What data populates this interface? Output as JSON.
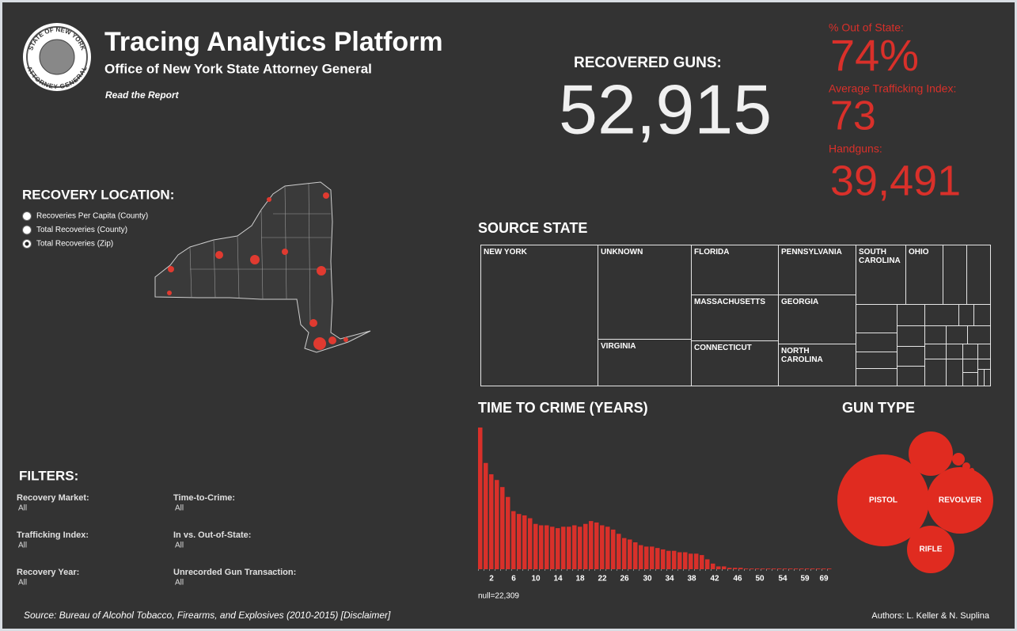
{
  "header": {
    "title": "Tracing Analytics Platform",
    "subtitle": "Office of New York State Attorney General",
    "link": "Read the Report",
    "seal_top": "STATE OF NEW YORK",
    "seal_bottom": "ATTORNEY GENERAL"
  },
  "kpis": {
    "recovered_label": "RECOVERED GUNS:",
    "recovered_value": "52,915",
    "out_of_state_label": "% Out of State:",
    "out_of_state_value": "74%",
    "trafficking_label": "Average Trafficking Index:",
    "trafficking_value": "73",
    "handguns_label": "Handguns:",
    "handguns_value": "39,491"
  },
  "recovery_location": {
    "title": "RECOVERY LOCATION:",
    "options": [
      "Recoveries Per Capita (County)",
      "Total Recoveries (County)",
      "Total Recoveries (Zip)"
    ],
    "selected": 2
  },
  "source_state": {
    "title": "SOURCE STATE",
    "states": [
      "NEW YORK",
      "UNKNOWN",
      "VIRGINIA",
      "FLORIDA",
      "MASSACHUSETTS",
      "CONNECTICUT",
      "PENNSYLVANIA",
      "GEORGIA",
      "NORTH CAROLINA",
      "SOUTH CAROLINA",
      "OHIO"
    ]
  },
  "time_to_crime": {
    "title": "TIME TO CRIME (YEARS)",
    "values": [
      100,
      75,
      67,
      63,
      58,
      51,
      41,
      39,
      38,
      36,
      32,
      31,
      31,
      30,
      29,
      30,
      30,
      31,
      30,
      32,
      34,
      33,
      31,
      30,
      28,
      25,
      22,
      21,
      19,
      17,
      16,
      16,
      15,
      14,
      13,
      13,
      12,
      12,
      11,
      11,
      10,
      7,
      4,
      2,
      2,
      1,
      1,
      1,
      0.5,
      0.5,
      0.5,
      0.5,
      0.5,
      0.5,
      0.5,
      0.5,
      0.5,
      0.5,
      0.5,
      0.5,
      0.5,
      0.5,
      0.5,
      0.5
    ],
    "x_labels": [
      2,
      6,
      10,
      14,
      18,
      22,
      26,
      30,
      34,
      38,
      42,
      46,
      50,
      54,
      59,
      69
    ],
    "note": "null=22,309"
  },
  "gun_type": {
    "title": "GUN TYPE",
    "types": [
      "PISTOL",
      "REVOLVER",
      "RIFLE"
    ]
  },
  "filters": {
    "title": "FILTERS:",
    "items": [
      {
        "label": "Recovery Market:",
        "value": "All"
      },
      {
        "label": "Time-to-Crime:",
        "value": "All"
      },
      {
        "label": "Trafficking Index:",
        "value": "All"
      },
      {
        "label": "In vs. Out-of-State:",
        "value": "All"
      },
      {
        "label": "Recovery Year:",
        "value": "All"
      },
      {
        "label": "Unrecorded Gun Transaction:",
        "value": "All"
      }
    ]
  },
  "footer": {
    "source": "Source: Bureau of Alcohol Tobacco, Firearms, and Explosives (2010-2015) [Disclaimer]",
    "authors": "Authors: L. Keller & N. Suplina"
  }
}
